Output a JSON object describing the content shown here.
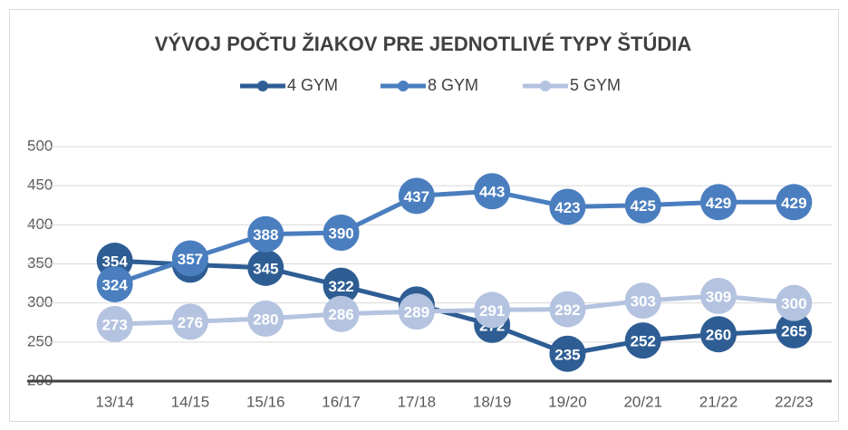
{
  "chart_data": {
    "type": "line",
    "title": "VÝVOJ POČTU ŽIAKOV PRE JEDNOTLIVÉ TYPY ŠTÚDIA",
    "categories": [
      "13/14",
      "14/15",
      "15/16",
      "16/17",
      "17/18",
      "18/19",
      "19/20",
      "20/21",
      "21/22",
      "22/23"
    ],
    "series": [
      {
        "name": "4 GYM",
        "color": "#2e5d94",
        "values": [
          354,
          349,
          345,
          322,
          298,
          272,
          235,
          252,
          260,
          265
        ]
      },
      {
        "name": "8 GYM",
        "color": "#4a7ebf",
        "values": [
          324,
          357,
          388,
          390,
          437,
          443,
          423,
          425,
          429,
          429
        ]
      },
      {
        "name": "5 GYM",
        "color": "#b4c3e0",
        "values": [
          273,
          276,
          280,
          286,
          289,
          291,
          292,
          303,
          309,
          300
        ]
      }
    ],
    "ylim": [
      200,
      500
    ],
    "yticks": [
      200,
      250,
      300,
      350,
      400,
      450,
      500
    ],
    "grid": true,
    "legend": "top"
  }
}
